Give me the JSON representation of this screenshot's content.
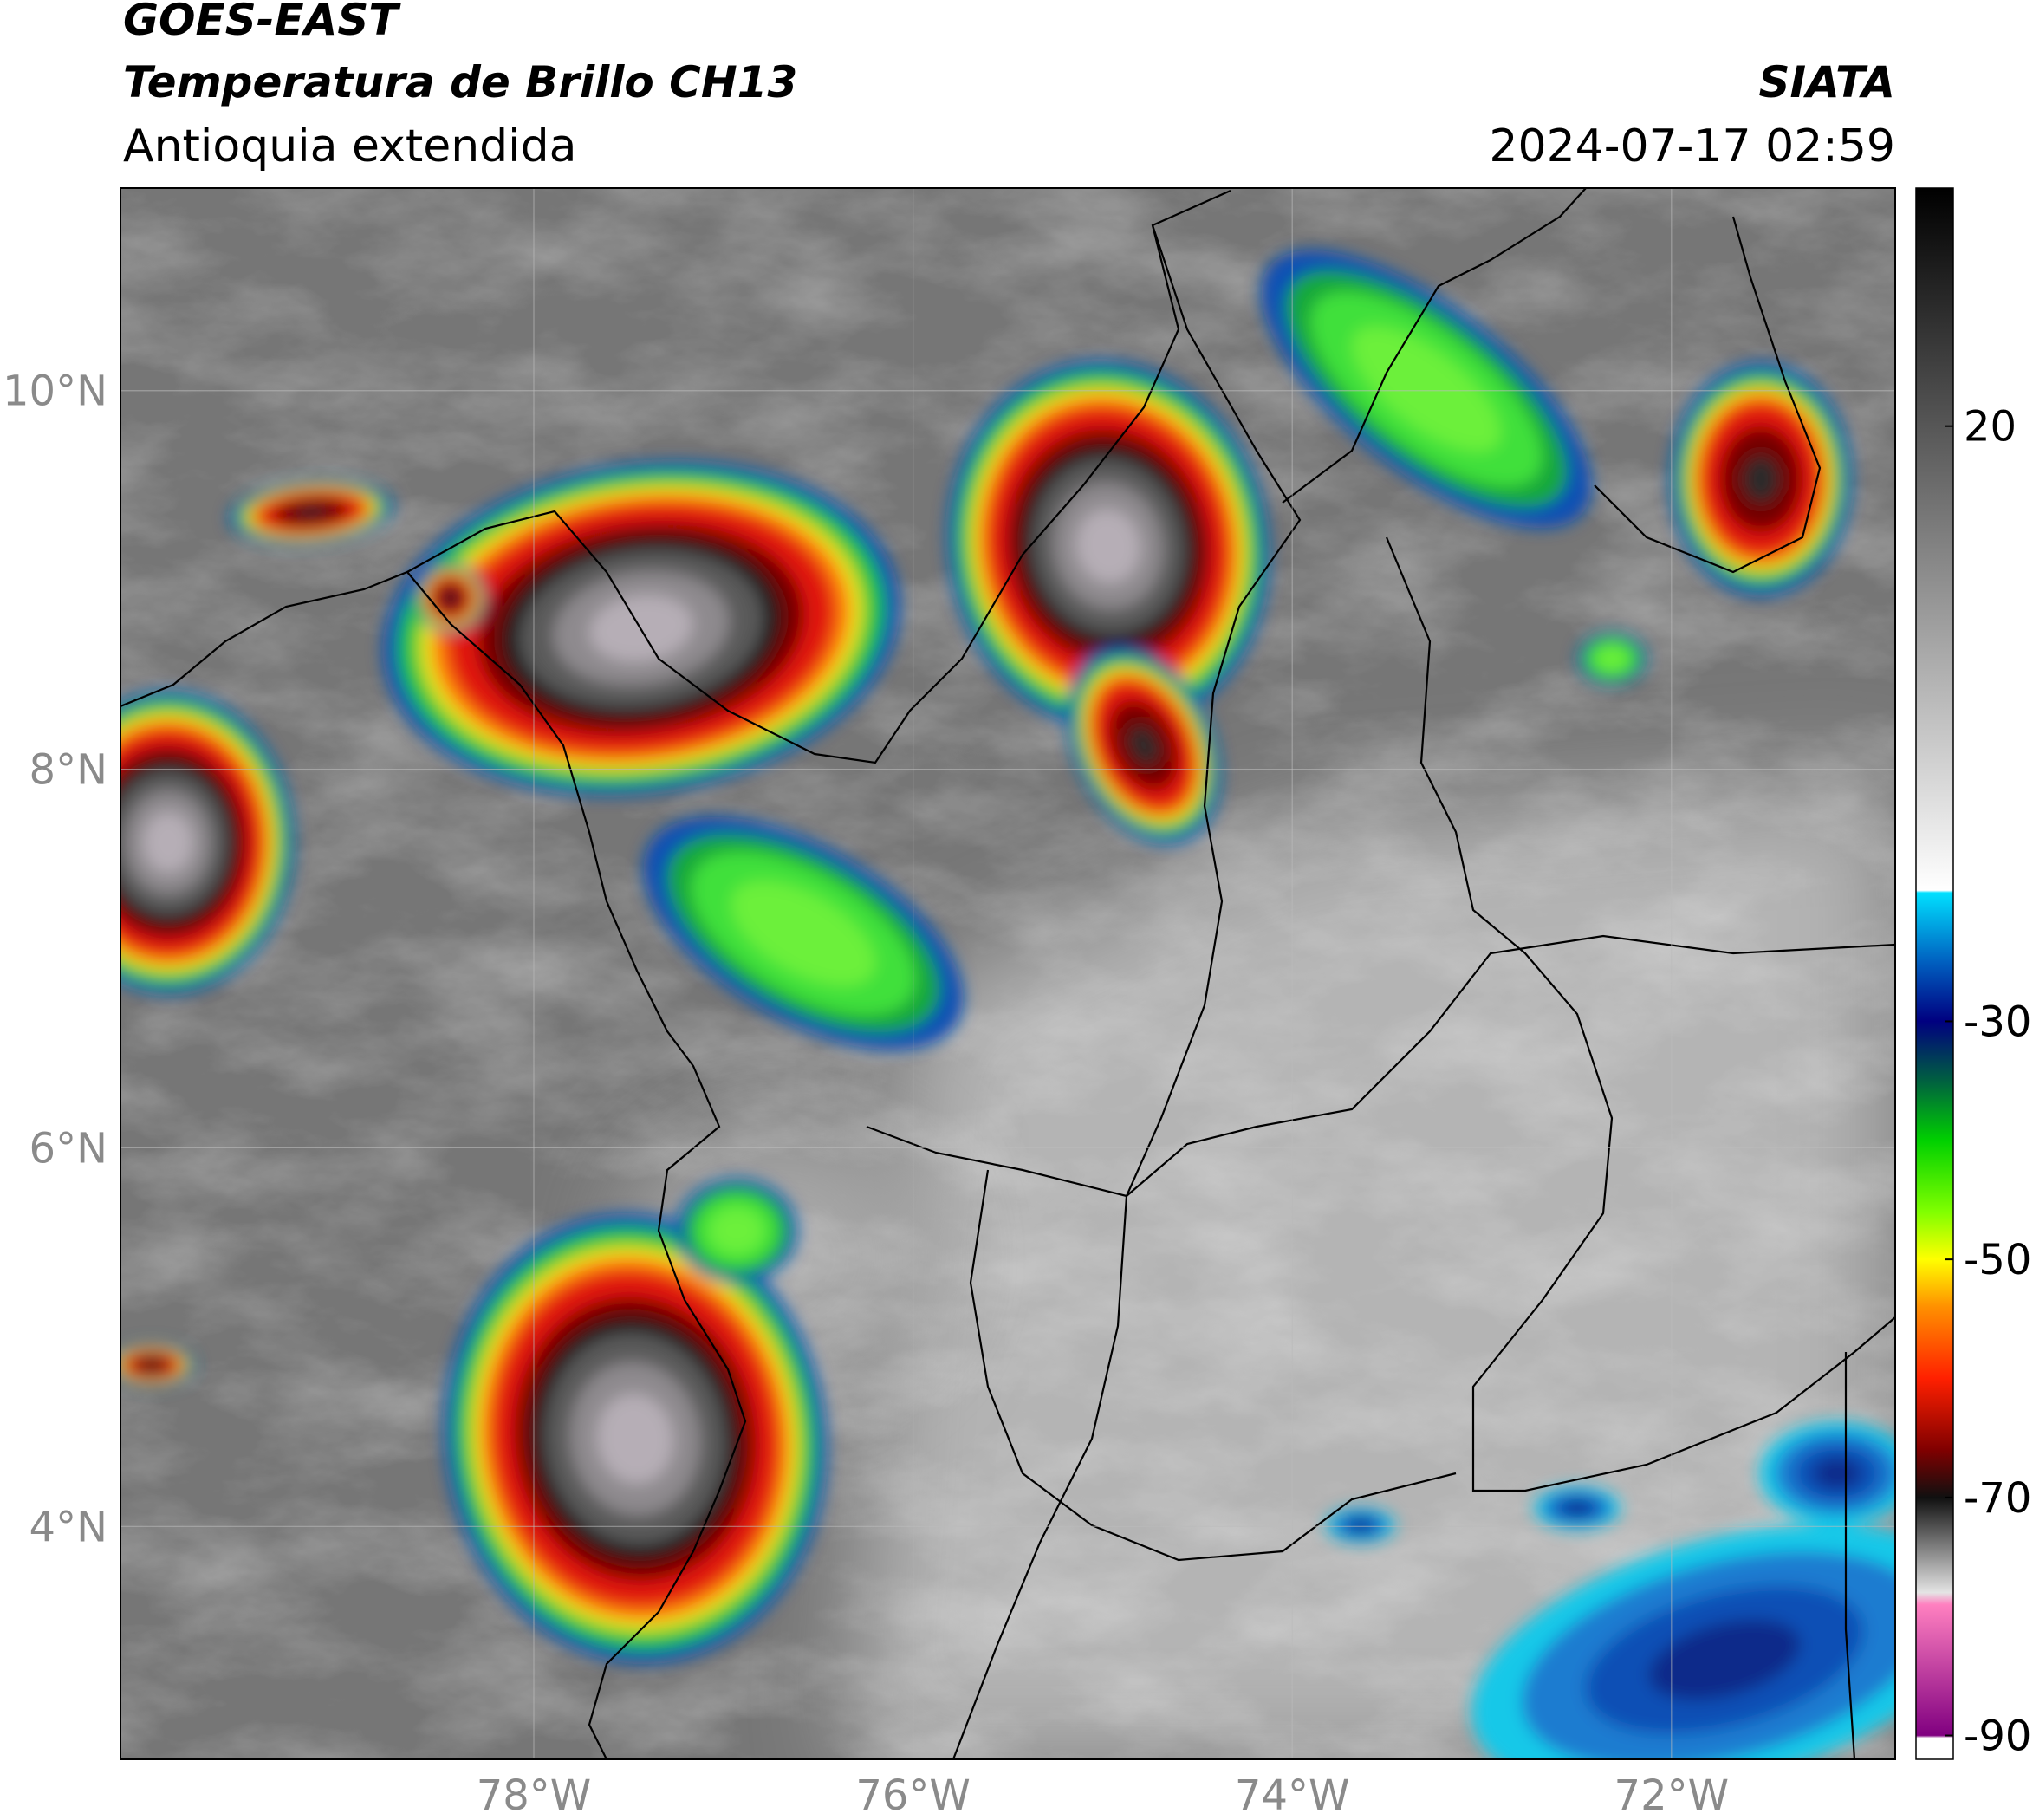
{
  "header": {
    "title": "GOES-EAST",
    "subtitle": "Temperatura de Brillo CH13",
    "region": "Antioquia extendida",
    "source": "SIATA",
    "datetime": "2024-07-17 02:59"
  },
  "map": {
    "lonlim": [
      -80.18,
      -70.82
    ],
    "latlim": [
      2.77,
      11.07
    ],
    "lonticks": [
      {
        "value": -78,
        "label": "78°W"
      },
      {
        "value": -76,
        "label": "76°W"
      },
      {
        "value": -74,
        "label": "74°W"
      },
      {
        "value": -72,
        "label": "72°W"
      }
    ],
    "latticks": [
      {
        "value": 4,
        "label": "4°N"
      },
      {
        "value": 6,
        "label": "6°N"
      },
      {
        "value": 8,
        "label": "8°N"
      },
      {
        "value": 10,
        "label": "10°N"
      }
    ],
    "grid": true
  },
  "colorbar": {
    "lim": [
      -92,
      40
    ],
    "ticks": [
      20,
      -30,
      -50,
      -70,
      -90
    ],
    "colors": [
      {
        "value": -92,
        "color": "#ffffff"
      },
      {
        "value": -90.2,
        "color": "#ffffff"
      },
      {
        "value": -90,
        "color": "#800080"
      },
      {
        "value": -79,
        "color": "#ff80c0"
      },
      {
        "value": -78,
        "color": "#e4e4e4"
      },
      {
        "value": -70,
        "color": "#101010"
      },
      {
        "value": -66,
        "color": "#800000"
      },
      {
        "value": -60,
        "color": "#ff2000"
      },
      {
        "value": -54,
        "color": "#ff9000"
      },
      {
        "value": -50,
        "color": "#ffff00"
      },
      {
        "value": -46,
        "color": "#80ff00"
      },
      {
        "value": -40,
        "color": "#00d000"
      },
      {
        "value": -35,
        "color": "#006040"
      },
      {
        "value": -30,
        "color": "#000080"
      },
      {
        "value": -25,
        "color": "#0060c0"
      },
      {
        "value": -19.2,
        "color": "#00e0ff"
      },
      {
        "value": -19,
        "color": "#ffffff"
      },
      {
        "value": 40,
        "color": "#000000"
      }
    ]
  }
}
